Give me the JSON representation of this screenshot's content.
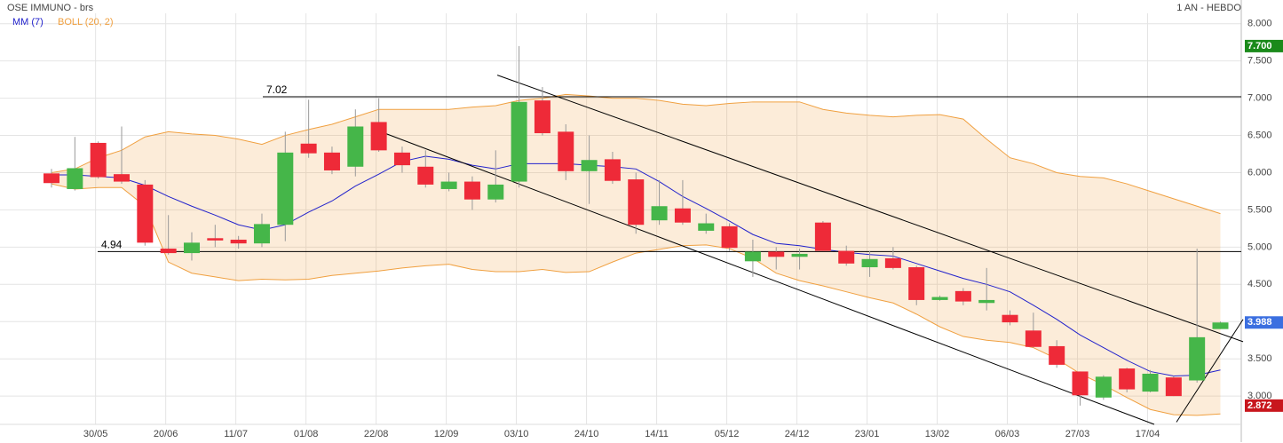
{
  "chart_data": {
    "type": "candlestick",
    "title": "OSE IMMUNO - brs",
    "subtitle": "1 AN - HEBDO",
    "categories": [
      null,
      null,
      "30/05",
      null,
      null,
      "20/06",
      null,
      null,
      "11/07",
      null,
      null,
      "01/08",
      null,
      null,
      "22/08",
      null,
      null,
      "12/09",
      null,
      null,
      "03/10",
      null,
      null,
      "24/10",
      null,
      null,
      "14/11",
      null,
      null,
      "05/12",
      null,
      null,
      "24/12",
      null,
      null,
      "23/01",
      null,
      null,
      "13/02",
      null,
      null,
      "06/03",
      null,
      null,
      "27/03",
      null,
      null,
      "17/04",
      null,
      null,
      null
    ],
    "open": [
      5.99,
      5.78,
      6.4,
      5.98,
      5.84,
      4.98,
      4.92,
      5.12,
      5.1,
      5.05,
      5.3,
      6.39,
      6.27,
      6.08,
      6.68,
      6.27,
      6.08,
      5.78,
      5.88,
      5.64,
      5.88,
      6.97,
      6.55,
      6.02,
      6.18,
      5.91,
      5.36,
      5.52,
      5.22,
      5.28,
      4.81,
      4.94,
      4.87,
      5.33,
      4.95,
      4.73,
      4.85,
      4.73,
      4.29,
      4.41,
      4.25,
      4.09,
      3.88,
      3.67,
      3.33,
      2.98,
      3.37,
      3.06,
      3.25,
      3.21,
      3.9
    ],
    "high": [
      6.05,
      6.48,
      6.42,
      6.62,
      5.9,
      5.43,
      5.2,
      5.3,
      5.15,
      5.45,
      6.55,
      6.98,
      6.35,
      6.85,
      7.0,
      6.35,
      6.3,
      6.0,
      5.95,
      6.3,
      7.7,
      7.15,
      6.65,
      6.5,
      6.28,
      6.0,
      5.9,
      5.9,
      5.45,
      5.32,
      5.1,
      5.0,
      4.98,
      5.35,
      5.02,
      4.95,
      5.0,
      4.75,
      4.35,
      4.45,
      4.72,
      4.15,
      4.12,
      3.75,
      3.33,
      3.28,
      3.38,
      3.35,
      3.27,
      4.98,
      4.0
    ],
    "low": [
      5.8,
      5.76,
      5.92,
      5.85,
      5.02,
      4.9,
      4.82,
      5.0,
      4.98,
      5.0,
      5.08,
      6.2,
      5.98,
      5.95,
      6.28,
      6.0,
      5.8,
      5.75,
      5.5,
      5.6,
      5.8,
      6.5,
      5.9,
      5.58,
      5.85,
      5.18,
      5.3,
      5.3,
      5.18,
      4.95,
      4.6,
      4.7,
      4.7,
      4.95,
      4.75,
      4.6,
      4.7,
      4.22,
      4.28,
      4.22,
      4.15,
      3.95,
      3.65,
      3.38,
      2.872,
      2.95,
      3.05,
      3.05,
      3.0,
      3.18,
      3.9
    ],
    "close": [
      5.86,
      6.06,
      5.94,
      5.88,
      5.06,
      4.92,
      5.06,
      5.09,
      5.05,
      5.31,
      6.27,
      6.26,
      6.03,
      6.62,
      6.3,
      6.1,
      5.84,
      5.88,
      5.64,
      5.84,
      6.95,
      6.53,
      6.02,
      6.17,
      5.89,
      5.3,
      5.55,
      5.33,
      5.32,
      4.99,
      4.94,
      4.87,
      4.91,
      4.95,
      4.78,
      4.84,
      4.72,
      4.29,
      4.33,
      4.27,
      4.29,
      3.99,
      3.66,
      3.42,
      3.01,
      3.26,
      3.09,
      3.3,
      3.0,
      3.79,
      3.988
    ],
    "up_color": "#45b649",
    "down_color": "#ee2a38",
    "overlays": [
      {
        "name": "MM (7)",
        "color": "#2222cc",
        "values": [
          5.97,
          5.97,
          5.95,
          5.93,
          5.83,
          5.68,
          5.55,
          5.43,
          5.3,
          5.23,
          5.3,
          5.47,
          5.62,
          5.82,
          5.98,
          6.15,
          6.22,
          6.18,
          6.1,
          6.05,
          6.12,
          6.12,
          6.12,
          6.1,
          6.08,
          6.05,
          5.88,
          5.68,
          5.52,
          5.35,
          5.17,
          5.05,
          5.02,
          4.97,
          4.93,
          4.9,
          4.88,
          4.78,
          4.68,
          4.58,
          4.5,
          4.4,
          4.22,
          4.03,
          3.82,
          3.65,
          3.48,
          3.33,
          3.27,
          3.28,
          3.35
        ]
      },
      {
        "name": "BOLL (20, 2)",
        "color": "#f0a040",
        "upper": [
          6.0,
          6.05,
          6.2,
          6.3,
          6.48,
          6.55,
          6.52,
          6.5,
          6.45,
          6.38,
          6.5,
          6.58,
          6.65,
          6.75,
          6.85,
          6.85,
          6.85,
          6.85,
          6.88,
          6.9,
          6.97,
          7.0,
          7.05,
          7.03,
          7.0,
          7.0,
          6.97,
          6.92,
          6.9,
          6.93,
          6.95,
          6.95,
          6.95,
          6.85,
          6.8,
          6.77,
          6.75,
          6.77,
          6.78,
          6.72,
          6.45,
          6.2,
          6.12,
          6.0,
          5.95,
          5.93,
          5.85,
          5.75,
          5.65,
          5.55,
          5.45
        ],
        "lower": [
          5.85,
          5.78,
          5.8,
          5.8,
          5.55,
          4.8,
          4.65,
          4.6,
          4.55,
          4.57,
          4.56,
          4.57,
          4.62,
          4.65,
          4.68,
          4.72,
          4.75,
          4.77,
          4.7,
          4.67,
          4.67,
          4.7,
          4.66,
          4.67,
          4.8,
          4.92,
          4.97,
          5.02,
          5.03,
          4.98,
          4.85,
          4.65,
          4.55,
          4.48,
          4.4,
          4.32,
          4.25,
          4.1,
          3.93,
          3.8,
          3.75,
          3.72,
          3.65,
          3.5,
          3.3,
          3.15,
          2.98,
          2.82,
          2.75,
          2.74,
          2.76
        ]
      }
    ],
    "levels": [
      7.02,
      4.94
    ],
    "trendlines": [
      {
        "start": [
          19.07,
          7.31
        ],
        "end": [
          50.97,
          3.73
        ]
      },
      {
        "start": [
          14.0,
          6.56
        ],
        "end": [
          47.17,
          2.62
        ]
      },
      {
        "start": [
          48.12,
          2.65
        ],
        "end": [
          50.97,
          4.03
        ]
      }
    ],
    "price_markers": [
      {
        "value": 7.7,
        "label": "7.700",
        "color": "#1a8a1a"
      },
      {
        "value": 3.988,
        "label": "3.988",
        "color": "#3b6fe0"
      },
      {
        "value": 2.872,
        "label": "2.872",
        "color": "#c8161d"
      }
    ],
    "ylim": [
      2.62,
      8.14
    ],
    "yticks": [
      {
        "value": 3,
        "label": "3.000"
      },
      {
        "value": 3.5,
        "label": "3.500"
      },
      {
        "value": 4,
        "label": "4.000"
      },
      {
        "value": 4.5,
        "label": "4.500"
      },
      {
        "value": 5,
        "label": "5.000"
      },
      {
        "value": 5.5,
        "label": "5.500"
      },
      {
        "value": 6,
        "label": "6.000"
      },
      {
        "value": 6.5,
        "label": "6.500"
      },
      {
        "value": 7,
        "label": "7.000"
      },
      {
        "value": 7.5,
        "label": "7.500"
      },
      {
        "value": 8,
        "label": "8.000"
      }
    ],
    "grid": true
  }
}
